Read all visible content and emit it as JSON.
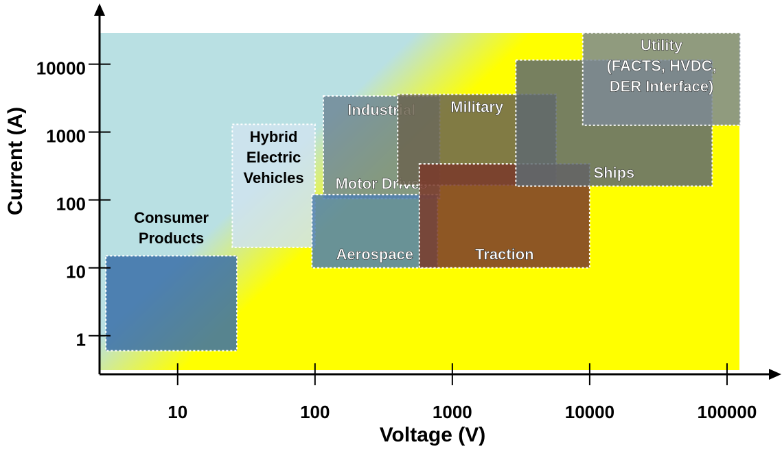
{
  "chart_data": {
    "type": "region",
    "x_label": "Voltage (V)",
    "y_label": "Current (A)",
    "xscale": "log",
    "yscale": "log",
    "xlim": [
      2.7,
      240000
    ],
    "ylim": [
      0.27,
      70000
    ],
    "xticks": [
      10,
      100,
      1000,
      10000,
      100000
    ],
    "yticks": [
      1,
      10,
      100,
      1000,
      10000
    ],
    "regions": [
      {
        "labels": [
          "Consumer",
          "Products"
        ],
        "label_position": "above",
        "text_color": "#000000",
        "color": "#3a6fa8",
        "x": [
          3,
          27
        ],
        "y": [
          0.6,
          15
        ]
      },
      {
        "labels": [
          "Hybrid",
          "Electric",
          "Vehicles"
        ],
        "label_position": "top",
        "text_color": "#000000",
        "color": "#cfe3ee",
        "x": [
          25,
          100
        ],
        "y": [
          20,
          1300
        ]
      },
      {
        "labels": [
          "Industrial",
          "Motor Drives"
        ],
        "label_position": "split",
        "text_color": "#ffffff",
        "color": "#6f8796",
        "x": [
          115,
          810
        ],
        "y": [
          105,
          3400
        ]
      },
      {
        "labels": [
          "Military"
        ],
        "label_position": "top",
        "text_color": "#ffffff",
        "color": "#6b6450",
        "x": [
          400,
          5700
        ],
        "y": [
          165,
          3600
        ]
      },
      {
        "labels": [
          "Aerospace"
        ],
        "label_position": "bottom",
        "text_color": "#ffffff",
        "color": "#4f7fb0",
        "x": [
          95,
          780
        ],
        "y": [
          10,
          120
        ]
      },
      {
        "labels": [
          "Traction"
        ],
        "label_position": "bottom",
        "text_color": "#ffffff",
        "color": "#7a3a2a",
        "x": [
          575,
          10000
        ],
        "y": [
          10,
          340
        ]
      },
      {
        "labels": [
          "Ships"
        ],
        "label_position": "bottom",
        "text_color": "#ffffff",
        "color": "#5f6a70",
        "x": [
          2900,
          78000
        ],
        "y": [
          160,
          11500
        ]
      },
      {
        "labels": [
          "Utility",
          "(FACTS, HVDC,",
          "DER Interface)"
        ],
        "label_position": "top",
        "text_color": "#ffffff",
        "color": "#7d8a94",
        "x": [
          8900,
          125000
        ],
        "y": [
          1260,
          29000
        ]
      }
    ]
  }
}
